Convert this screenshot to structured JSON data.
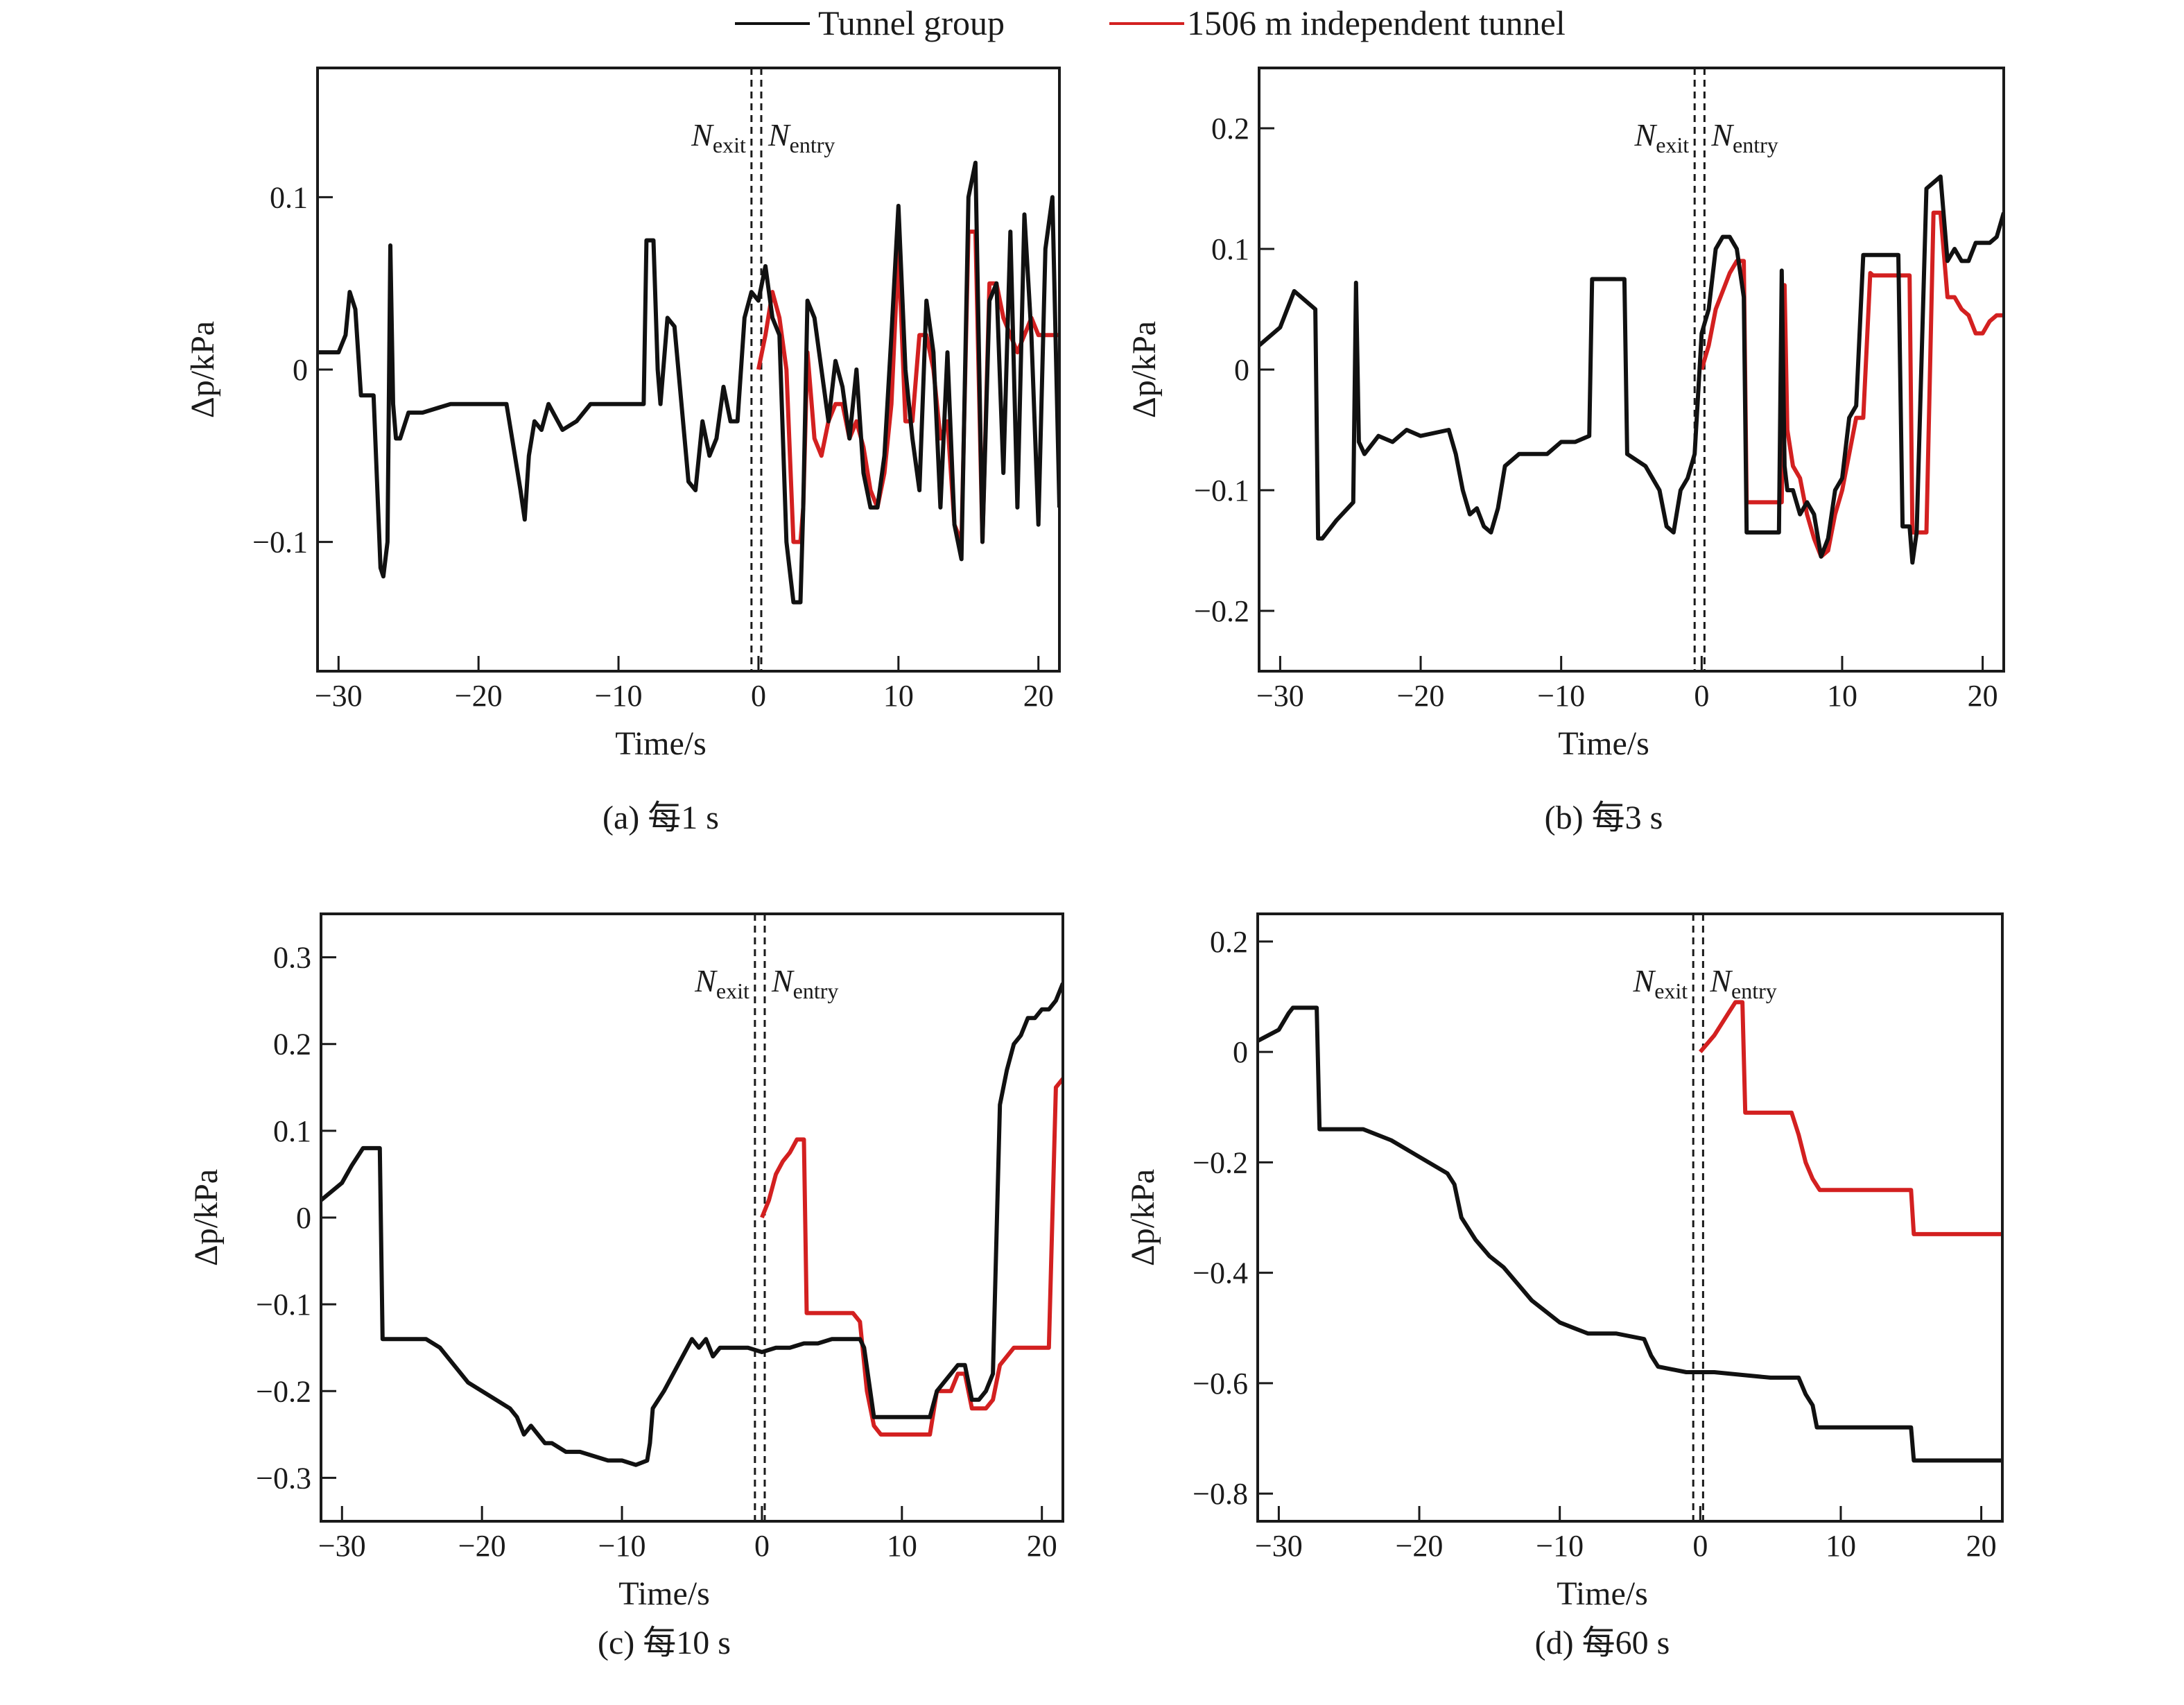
{
  "legend": [
    {
      "label": "Tunnel group",
      "color": "#111111"
    },
    {
      "label": "1506 m independent tunnel",
      "color": "#d32020"
    }
  ],
  "chart_data": [
    {
      "type": "line",
      "caption": "(a) 每1 s",
      "xlabel": "Time/s",
      "ylabel": "Δp/kPa",
      "xlim": [
        -31.5,
        21.5
      ],
      "ylim": [
        -0.175,
        0.175
      ],
      "xticks": [
        -30,
        -20,
        -10,
        0,
        10,
        20
      ],
      "xtick_labels": [
        "−30",
        "−20",
        "−10",
        "0",
        "10",
        "20"
      ],
      "yticks": [
        -0.1,
        0,
        0.1
      ],
      "ytick_labels": [
        "−0.1",
        "0",
        "0.1"
      ],
      "annotation": {
        "n_exit": "N",
        "exit_sub": "exit",
        "n_entry": "N",
        "entry_sub": "entry",
        "x_exit": -0.5,
        "x_entry": 0.2
      },
      "series": [
        {
          "name": "Tunnel group",
          "color": "#111111",
          "x": [
            -31.5,
            -30,
            -29.5,
            -29.2,
            -28.8,
            -28.4,
            -28,
            -27.5,
            -27,
            -26.8,
            -26.5,
            -26.3,
            -26.1,
            -25.9,
            -25.6,
            -25,
            -24,
            -22,
            -20,
            -18,
            -17.4,
            -17,
            -16.7,
            -16.4,
            -16,
            -15.5,
            -15,
            -14,
            -13,
            -12,
            -11,
            -10,
            -9,
            -8.2,
            -8,
            -7.5,
            -7.2,
            -7,
            -6.5,
            -6,
            -5.5,
            -5,
            -4.5,
            -4,
            -3.5,
            -3,
            -2.5,
            -2,
            -1.5,
            -1,
            -0.5,
            0,
            0.5,
            1,
            1.5,
            2,
            2.5,
            3,
            3.2,
            3.5,
            4,
            4.5,
            5,
            5.5,
            6,
            6.5,
            7,
            7.5,
            8,
            8.5,
            9,
            9.5,
            10,
            10.5,
            11,
            11.5,
            12,
            12.5,
            13,
            13.5,
            14,
            14.5,
            15,
            15.5,
            16,
            16.5,
            17,
            17.5,
            18,
            18.5,
            19,
            19.5,
            20,
            20.5,
            21,
            21.5
          ],
          "y": [
            0.01,
            0.01,
            0.02,
            0.045,
            0.035,
            -0.015,
            -0.015,
            -0.015,
            -0.115,
            -0.12,
            -0.1,
            0.072,
            -0.02,
            -0.04,
            -0.04,
            -0.025,
            -0.025,
            -0.02,
            -0.02,
            -0.02,
            -0.05,
            -0.07,
            -0.087,
            -0.05,
            -0.03,
            -0.035,
            -0.02,
            -0.035,
            -0.03,
            -0.02,
            -0.02,
            -0.02,
            -0.02,
            -0.02,
            0.075,
            0.075,
            0.0,
            -0.02,
            0.03,
            0.025,
            -0.02,
            -0.065,
            -0.07,
            -0.03,
            -0.05,
            -0.04,
            -0.01,
            -0.03,
            -0.03,
            0.03,
            0.045,
            0.04,
            0.06,
            0.03,
            0.02,
            -0.1,
            -0.135,
            -0.135,
            -0.08,
            0.04,
            0.03,
            0.0,
            -0.03,
            0.005,
            -0.01,
            -0.04,
            0.0,
            -0.06,
            -0.08,
            -0.08,
            -0.05,
            0.02,
            0.095,
            0.0,
            -0.04,
            -0.07,
            0.04,
            0.01,
            -0.08,
            0.01,
            -0.09,
            -0.11,
            0.1,
            0.12,
            -0.1,
            0.04,
            0.05,
            -0.06,
            0.08,
            -0.08,
            0.09,
            0.02,
            -0.09,
            0.07,
            0.1,
            -0.08
          ]
        },
        {
          "name": "1506 m independent tunnel",
          "color": "#d32020",
          "x": [
            0,
            0.5,
            1,
            1.5,
            2,
            2.5,
            3,
            3.2,
            3.5,
            4,
            4.5,
            5,
            5.5,
            6,
            6.5,
            7,
            7.5,
            8,
            8.5,
            9,
            9.5,
            10,
            10.5,
            11,
            11.5,
            12,
            12.5,
            13,
            13.5,
            14,
            14.5,
            15,
            15.5,
            16,
            16.5,
            17,
            17.5,
            18,
            18.5,
            19,
            19.5,
            20,
            20.5,
            21,
            21.5
          ],
          "y": [
            0.0,
            0.02,
            0.045,
            0.03,
            0.0,
            -0.1,
            -0.1,
            -0.08,
            0.01,
            -0.04,
            -0.05,
            -0.03,
            -0.02,
            -0.02,
            -0.04,
            -0.03,
            -0.045,
            -0.07,
            -0.08,
            -0.06,
            -0.02,
            0.07,
            -0.03,
            -0.03,
            0.02,
            0.02,
            0.0,
            -0.04,
            -0.03,
            -0.09,
            -0.1,
            0.08,
            0.08,
            -0.1,
            0.05,
            0.05,
            0.03,
            0.02,
            0.01,
            0.02,
            0.03,
            0.02,
            0.02,
            0.02,
            0.02
          ]
        }
      ]
    },
    {
      "type": "line",
      "caption": "(b) 每3 s",
      "xlabel": "Time/s",
      "ylabel": "Δp/kPa",
      "xlim": [
        -31.5,
        21.5
      ],
      "ylim": [
        -0.25,
        0.25
      ],
      "xticks": [
        -30,
        -20,
        -10,
        0,
        10,
        20
      ],
      "xtick_labels": [
        "−30",
        "−20",
        "−10",
        "0",
        "10",
        "20"
      ],
      "yticks": [
        -0.2,
        -0.1,
        0,
        0.1,
        0.2
      ],
      "ytick_labels": [
        "−0.2",
        "−0.1",
        "0",
        "0.1",
        "0.2"
      ],
      "annotation": {
        "n_exit": "N",
        "exit_sub": "exit",
        "n_entry": "N",
        "entry_sub": "entry",
        "x_exit": -0.5,
        "x_entry": 0.2
      },
      "series": [
        {
          "name": "Tunnel group",
          "color": "#111111",
          "x": [
            -31.5,
            -30,
            -29.5,
            -29,
            -27.5,
            -27.3,
            -27,
            -26,
            -24.8,
            -24.6,
            -24.4,
            -24,
            -23,
            -22,
            -21,
            -20,
            -18,
            -17.5,
            -17,
            -16.5,
            -16,
            -15.5,
            -15,
            -14.5,
            -14,
            -13,
            -12,
            -11,
            -10,
            -9,
            -8,
            -7.8,
            -7.5,
            -5.5,
            -5.3,
            -4,
            -3,
            -2.5,
            -2,
            -1.5,
            -1,
            -0.5,
            0,
            0.5,
            1,
            1.5,
            2,
            2.5,
            3,
            3.2,
            3.5,
            5.5,
            5.7,
            5.9,
            6.1,
            6.5,
            7,
            7.5,
            8,
            8.5,
            9,
            9.5,
            10,
            10.5,
            11,
            11.5,
            12,
            12.2,
            14,
            14.3,
            14.8,
            15,
            15.3,
            16,
            16.5,
            17,
            17.5,
            18,
            18.5,
            19,
            19.5,
            20,
            20.5,
            21,
            21.5
          ],
          "y": [
            0.02,
            0.035,
            0.05,
            0.065,
            0.05,
            -0.14,
            -0.14,
            -0.125,
            -0.11,
            0.072,
            -0.06,
            -0.07,
            -0.055,
            -0.06,
            -0.05,
            -0.055,
            -0.05,
            -0.07,
            -0.1,
            -0.12,
            -0.115,
            -0.13,
            -0.135,
            -0.115,
            -0.08,
            -0.07,
            -0.07,
            -0.07,
            -0.06,
            -0.06,
            -0.055,
            0.075,
            0.075,
            0.075,
            -0.07,
            -0.08,
            -0.1,
            -0.13,
            -0.135,
            -0.1,
            -0.09,
            -0.07,
            0.03,
            0.05,
            0.1,
            0.11,
            0.11,
            0.1,
            0.06,
            -0.135,
            -0.135,
            -0.135,
            0.082,
            -0.08,
            -0.1,
            -0.1,
            -0.12,
            -0.11,
            -0.12,
            -0.155,
            -0.14,
            -0.1,
            -0.09,
            -0.04,
            -0.03,
            0.095,
            0.095,
            0.095,
            0.095,
            -0.13,
            -0.13,
            -0.16,
            -0.135,
            0.15,
            0.155,
            0.16,
            0.09,
            0.1,
            0.09,
            0.09,
            0.105,
            0.105,
            0.105,
            0.11,
            0.13
          ]
        },
        {
          "name": "1506 m independent tunnel",
          "color": "#d32020",
          "x": [
            0,
            0.5,
            1,
            1.5,
            2,
            2.5,
            3,
            3.2,
            5.5,
            5.7,
            5.9,
            6.1,
            6.5,
            7,
            7.5,
            8,
            8.5,
            9,
            9.5,
            10,
            10.5,
            11,
            11.5,
            12,
            12.2,
            14,
            14.3,
            14.8,
            15,
            15.3,
            16,
            16.5,
            17,
            17.5,
            18,
            18.5,
            19,
            19.5,
            20,
            20.5,
            21,
            21.5
          ],
          "y": [
            0.0,
            0.02,
            0.05,
            0.065,
            0.08,
            0.09,
            0.09,
            -0.11,
            -0.11,
            -0.11,
            0.07,
            -0.05,
            -0.08,
            -0.09,
            -0.12,
            -0.14,
            -0.155,
            -0.15,
            -0.12,
            -0.1,
            -0.07,
            -0.04,
            -0.04,
            0.08,
            0.078,
            0.078,
            0.078,
            0.078,
            -0.135,
            -0.135,
            -0.135,
            0.13,
            0.13,
            0.06,
            0.06,
            0.05,
            0.045,
            0.03,
            0.03,
            0.04,
            0.045,
            0.045
          ]
        }
      ]
    },
    {
      "type": "line",
      "caption": "(c) 每10 s",
      "xlabel": "Time/s",
      "ylabel": "Δp/kPa",
      "xlim": [
        -31.5,
        21.5
      ],
      "ylim": [
        -0.35,
        0.35
      ],
      "xticks": [
        -30,
        -20,
        -10,
        0,
        10,
        20
      ],
      "xtick_labels": [
        "−30",
        "−20",
        "−10",
        "0",
        "10",
        "20"
      ],
      "yticks": [
        -0.3,
        -0.2,
        -0.1,
        0,
        0.1,
        0.2,
        0.3
      ],
      "ytick_labels": [
        "−0.3",
        "−0.2",
        "−0.1",
        "0",
        "0.1",
        "0.2",
        "0.3"
      ],
      "annotation": {
        "n_exit": "N",
        "exit_sub": "exit",
        "n_entry": "N",
        "entry_sub": "entry",
        "x_exit": -0.5,
        "x_entry": 0.2
      },
      "series": [
        {
          "name": "Tunnel group",
          "color": "#111111",
          "x": [
            -31.5,
            -30,
            -29.3,
            -28.5,
            -27.3,
            -27.1,
            -24,
            -23,
            -22,
            -21,
            -20,
            -19,
            -18,
            -17.5,
            -17,
            -16.5,
            -16,
            -15.5,
            -15,
            -14,
            -13,
            -12,
            -11,
            -10,
            -9,
            -8.2,
            -8,
            -7.8,
            -7,
            -6,
            -5,
            -4.5,
            -4,
            -3.5,
            -3,
            -2,
            -1,
            0,
            1,
            2,
            3,
            4,
            5,
            6,
            7,
            7.3,
            8,
            9,
            10,
            11,
            12,
            12.5,
            13,
            13.5,
            14,
            14.5,
            15,
            15.5,
            16,
            16.5,
            17,
            17.5,
            18,
            18.5,
            19,
            19.5,
            20,
            20.5,
            21,
            21.5
          ],
          "y": [
            0.02,
            0.04,
            0.06,
            0.08,
            0.08,
            -0.14,
            -0.14,
            -0.15,
            -0.17,
            -0.19,
            -0.2,
            -0.21,
            -0.22,
            -0.23,
            -0.25,
            -0.24,
            -0.25,
            -0.26,
            -0.26,
            -0.27,
            -0.27,
            -0.275,
            -0.28,
            -0.28,
            -0.285,
            -0.28,
            -0.26,
            -0.22,
            -0.2,
            -0.17,
            -0.14,
            -0.15,
            -0.14,
            -0.16,
            -0.15,
            -0.15,
            -0.15,
            -0.155,
            -0.15,
            -0.15,
            -0.145,
            -0.145,
            -0.14,
            -0.14,
            -0.14,
            -0.15,
            -0.23,
            -0.23,
            -0.23,
            -0.23,
            -0.23,
            -0.2,
            -0.19,
            -0.18,
            -0.17,
            -0.17,
            -0.21,
            -0.21,
            -0.2,
            -0.18,
            0.13,
            0.17,
            0.2,
            0.21,
            0.23,
            0.23,
            0.24,
            0.24,
            0.25,
            0.27
          ]
        },
        {
          "name": "1506 m independent tunnel",
          "color": "#d32020",
          "x": [
            0,
            0.5,
            1,
            1.5,
            2,
            2.5,
            3,
            3.2,
            6.5,
            7,
            7.5,
            8,
            8.5,
            9,
            10,
            11,
            11.5,
            12,
            12.5,
            13,
            13.5,
            14,
            14.5,
            15,
            15.5,
            16,
            16.5,
            17,
            18,
            19,
            20,
            20.5,
            21,
            21.5
          ],
          "y": [
            0.0,
            0.02,
            0.05,
            0.065,
            0.075,
            0.09,
            0.09,
            -0.11,
            -0.11,
            -0.12,
            -0.2,
            -0.24,
            -0.25,
            -0.25,
            -0.25,
            -0.25,
            -0.25,
            -0.25,
            -0.2,
            -0.2,
            -0.2,
            -0.18,
            -0.18,
            -0.22,
            -0.22,
            -0.22,
            -0.21,
            -0.17,
            -0.15,
            -0.15,
            -0.15,
            -0.15,
            0.15,
            0.16
          ]
        }
      ]
    },
    {
      "type": "line",
      "caption": "(d) 每60 s",
      "xlabel": "Time/s",
      "ylabel": "Δp/kPa",
      "xlim": [
        -31.5,
        21.5
      ],
      "ylim": [
        -0.85,
        0.25
      ],
      "xticks": [
        -30,
        -20,
        -10,
        0,
        10,
        20
      ],
      "xtick_labels": [
        "−30",
        "−20",
        "−10",
        "0",
        "10",
        "20"
      ],
      "yticks": [
        -0.8,
        -0.6,
        -0.4,
        -0.2,
        0,
        0.2
      ],
      "ytick_labels": [
        "−0.8",
        "−0.6",
        "−0.4",
        "−0.2",
        "0",
        "0.2"
      ],
      "annotation": {
        "n_exit": "N",
        "exit_sub": "exit",
        "n_entry": "N",
        "entry_sub": "entry",
        "x_exit": -0.5,
        "x_entry": 0.2
      },
      "series": [
        {
          "name": "Tunnel group",
          "color": "#111111",
          "x": [
            -31.5,
            -30,
            -29.3,
            -29,
            -27.3,
            -27.1,
            -24,
            -22,
            -20,
            -18,
            -17.5,
            -17,
            -16,
            -15,
            -14,
            -13,
            -12,
            -11,
            -10,
            -9,
            -8,
            -6,
            -4,
            -3.5,
            -3,
            -1,
            1,
            3,
            5,
            6,
            7,
            7.5,
            8,
            8.3,
            15,
            15.2,
            21.5
          ],
          "y": [
            0.02,
            0.04,
            0.07,
            0.08,
            0.08,
            -0.14,
            -0.14,
            -0.16,
            -0.19,
            -0.22,
            -0.24,
            -0.3,
            -0.34,
            -0.37,
            -0.39,
            -0.42,
            -0.45,
            -0.47,
            -0.49,
            -0.5,
            -0.51,
            -0.51,
            -0.52,
            -0.55,
            -0.57,
            -0.58,
            -0.58,
            -0.585,
            -0.59,
            -0.59,
            -0.59,
            -0.62,
            -0.64,
            -0.68,
            -0.68,
            -0.74,
            -0.74
          ]
        },
        {
          "name": "1506 m independent tunnel",
          "color": "#d32020",
          "x": [
            0,
            1,
            2,
            2.5,
            3,
            3.2,
            6,
            6.5,
            7,
            7.5,
            8,
            8.5,
            15,
            15.2,
            21.5
          ],
          "y": [
            0.0,
            0.03,
            0.07,
            0.09,
            0.09,
            -0.11,
            -0.11,
            -0.11,
            -0.15,
            -0.2,
            -0.23,
            -0.25,
            -0.25,
            -0.33,
            -0.33
          ]
        }
      ]
    }
  ]
}
